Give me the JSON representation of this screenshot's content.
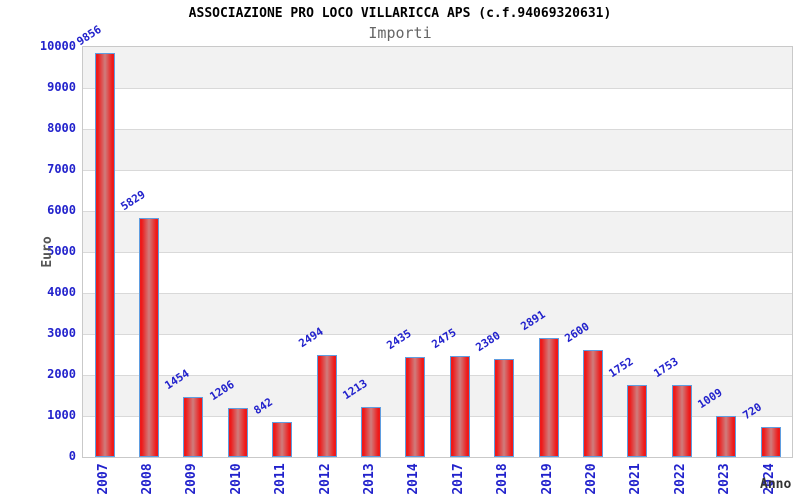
{
  "chart_data": {
    "type": "bar",
    "title": "ASSOCIAZIONE PRO LOCO VILLARICCA APS (c.f.94069320631)",
    "subtitle": "Importi",
    "xlabel": "Anno",
    "ylabel": "Euro",
    "categories": [
      "2007",
      "2008",
      "2009",
      "2010",
      "2011",
      "2012",
      "2013",
      "2014",
      "2017",
      "2018",
      "2019",
      "2020",
      "2021",
      "2022",
      "2023",
      "2024"
    ],
    "values": [
      9856,
      5829,
      1454,
      1206,
      842,
      2494,
      1213,
      2435,
      2475,
      2380,
      2891,
      2600,
      1752,
      1753,
      1009,
      720
    ],
    "ylim": [
      0,
      10000
    ],
    "ytick_step": 1000,
    "grid": true,
    "legend_position": "none",
    "band_fill": "alternating horizontal bands per 1000 units",
    "colors": {
      "bar_edge": "#ee1a1a",
      "bar_center": "#cf7d7d",
      "bar_border": "#5f9de0",
      "label_blue": "#2222cc",
      "band_gray": "#f2f2f2",
      "band_white": "#ffffff",
      "gridline": "#d9d9d9",
      "axis_text": "#555555",
      "title_color": "#000000",
      "subtitle_color": "#666666"
    }
  }
}
